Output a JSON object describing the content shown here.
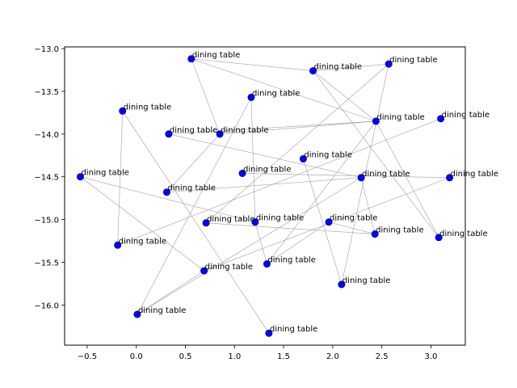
{
  "chart_data": {
    "type": "scatter",
    "title": "",
    "xlabel": "",
    "ylabel": "",
    "xlim": [
      -0.73,
      3.35
    ],
    "ylim": [
      -16.47,
      -12.98
    ],
    "xticks": [
      -0.5,
      0.0,
      0.5,
      1.0,
      1.5,
      2.0,
      2.5,
      3.0
    ],
    "xtick_labels": [
      "−0.5",
      "0.0",
      "0.5",
      "1.0",
      "1.5",
      "2.0",
      "2.5",
      "3.0"
    ],
    "yticks": [
      -13.0,
      -13.5,
      -14.0,
      -14.5,
      -15.0,
      -15.5,
      -16.0
    ],
    "ytick_labels": [
      "−13.0",
      "−13.5",
      "−14.0",
      "−14.5",
      "−15.0",
      "−15.5",
      "−16.0"
    ],
    "grid": false,
    "legend": false,
    "colors": {
      "point": "#0000ff",
      "edge": "#a0a0a0",
      "axis": "#000000"
    },
    "points": [
      {
        "x": 0.56,
        "y": -13.12,
        "label": "dining table"
      },
      {
        "x": 1.8,
        "y": -13.26,
        "label": "dining table"
      },
      {
        "x": 2.57,
        "y": -13.18,
        "label": "dining table"
      },
      {
        "x": 1.17,
        "y": -13.57,
        "label": "dining table"
      },
      {
        "x": -0.14,
        "y": -13.73,
        "label": "dining table"
      },
      {
        "x": 3.1,
        "y": -13.82,
        "label": "dining table"
      },
      {
        "x": 2.44,
        "y": -13.85,
        "label": "dining table"
      },
      {
        "x": 0.33,
        "y": -14.0,
        "label": "dining table"
      },
      {
        "x": 0.85,
        "y": -14.0,
        "label": "dining table"
      },
      {
        "x": 1.7,
        "y": -14.29,
        "label": "dining table"
      },
      {
        "x": 1.08,
        "y": -14.46,
        "label": "dining table"
      },
      {
        "x": -0.57,
        "y": -14.5,
        "label": "dining table"
      },
      {
        "x": 2.29,
        "y": -14.51,
        "label": "dining table"
      },
      {
        "x": 3.19,
        "y": -14.51,
        "label": "dining table"
      },
      {
        "x": 0.31,
        "y": -14.68,
        "label": "dining table"
      },
      {
        "x": 1.21,
        "y": -15.03,
        "label": "dining table"
      },
      {
        "x": 0.71,
        "y": -15.04,
        "label": "dining table"
      },
      {
        "x": 1.96,
        "y": -15.03,
        "label": "dining table"
      },
      {
        "x": 2.43,
        "y": -15.17,
        "label": "dining table"
      },
      {
        "x": 3.08,
        "y": -15.21,
        "label": "dining table"
      },
      {
        "x": -0.19,
        "y": -15.3,
        "label": "dining table"
      },
      {
        "x": 1.33,
        "y": -15.52,
        "label": "dining table"
      },
      {
        "x": 0.69,
        "y": -15.6,
        "label": "dining table"
      },
      {
        "x": 2.09,
        "y": -15.76,
        "label": "dining table"
      },
      {
        "x": 0.01,
        "y": -16.11,
        "label": "dining table"
      },
      {
        "x": 1.35,
        "y": -16.33,
        "label": "dining table"
      }
    ],
    "edges": [
      [
        0,
        6
      ],
      [
        0,
        1
      ],
      [
        0,
        8
      ],
      [
        1,
        2
      ],
      [
        1,
        6
      ],
      [
        2,
        23
      ],
      [
        2,
        16
      ],
      [
        3,
        24
      ],
      [
        4,
        20
      ],
      [
        4,
        25
      ],
      [
        7,
        6
      ],
      [
        7,
        12
      ],
      [
        8,
        6
      ],
      [
        8,
        14
      ],
      [
        9,
        23
      ],
      [
        10,
        13
      ],
      [
        11,
        15
      ],
      [
        11,
        22
      ],
      [
        12,
        18
      ],
      [
        14,
        12
      ],
      [
        15,
        3
      ],
      [
        15,
        21
      ],
      [
        16,
        18
      ],
      [
        17,
        21
      ],
      [
        17,
        18
      ],
      [
        19,
        1
      ],
      [
        19,
        6
      ],
      [
        20,
        5
      ],
      [
        21,
        6
      ],
      [
        22,
        13
      ],
      [
        24,
        22
      ],
      [
        24,
        12
      ]
    ]
  }
}
